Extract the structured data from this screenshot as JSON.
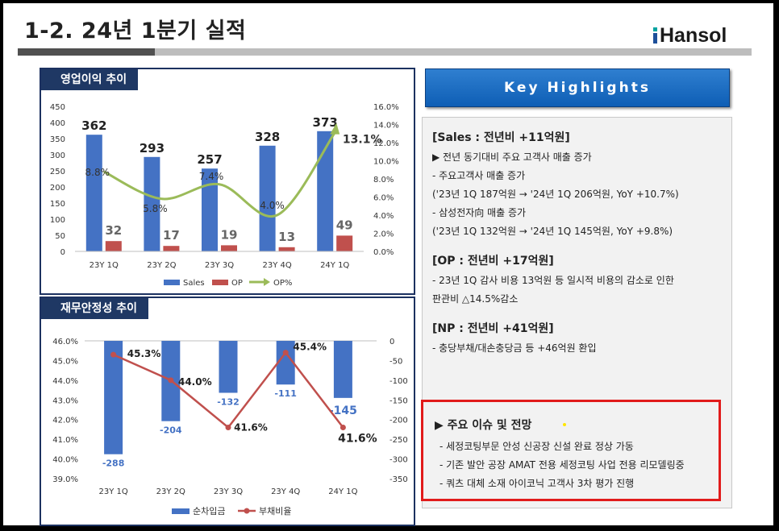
{
  "header": {
    "title": "1-2. 24년 1분기 실적",
    "logo": "Hansol"
  },
  "panel1": {
    "tab": "영업이익 추이"
  },
  "panel2": {
    "tab": "재무안정성 추이"
  },
  "chart_data": [
    {
      "type": "bar",
      "title": "영업이익 추이",
      "categories": [
        "23Y 1Q",
        "23Y 2Q",
        "23Y 3Q",
        "23Y 4Q",
        "24Y 1Q"
      ],
      "series": [
        {
          "name": "Sales",
          "values": [
            362,
            293,
            257,
            328,
            373
          ],
          "labels": [
            "362",
            "293",
            "257",
            "328",
            "373"
          ],
          "color": "#4472c4"
        },
        {
          "name": "OP",
          "values": [
            32,
            17,
            19,
            13,
            49
          ],
          "labels": [
            "32",
            "17",
            "19",
            "13",
            "49"
          ],
          "color": "#c0504d"
        },
        {
          "name": "OP%",
          "type": "line",
          "axis": "right",
          "values": [
            8.8,
            5.8,
            7.4,
            4.0,
            13.1
          ],
          "labels": [
            "8.8%",
            "5.8%",
            "7.4%",
            "4.0%",
            "13.1%"
          ],
          "color": "#9bbb59"
        }
      ],
      "ylim": [
        0,
        450
      ],
      "yticks": [
        "450",
        "400",
        "350",
        "300",
        "250",
        "200",
        "150",
        "100",
        "50",
        "0"
      ],
      "y2lim": [
        0,
        16
      ],
      "y2ticks": [
        "16.0%",
        "14.0%",
        "12.0%",
        "10.0%",
        "8.0%",
        "6.0%",
        "4.0%",
        "2.0%",
        "0.0%"
      ],
      "legend": "bottom"
    },
    {
      "type": "bar",
      "title": "재무안정성 추이",
      "categories": [
        "23Y 1Q",
        "23Y 2Q",
        "23Y 3Q",
        "23Y 4Q",
        "24Y 1Q"
      ],
      "series": [
        {
          "name": "순차입금",
          "axis": "right",
          "values": [
            -288,
            -204,
            -132,
            -111,
            -145
          ],
          "labels": [
            "-288",
            "-204",
            "-132",
            "-111",
            "-145"
          ],
          "color": "#4472c4"
        },
        {
          "name": "부채비율",
          "type": "line",
          "axis": "left",
          "values": [
            45.3,
            44.0,
            41.6,
            45.4,
            41.6
          ],
          "labels": [
            "45.3%",
            "44.0%",
            "41.6%",
            "45.4%",
            "41.6%"
          ],
          "color": "#c0504d"
        }
      ],
      "ylim": [
        39,
        46
      ],
      "yticks": [
        "46.0%",
        "45.0%",
        "44.0%",
        "43.0%",
        "42.0%",
        "41.0%",
        "40.0%",
        "39.0%"
      ],
      "y2lim": [
        -350,
        0
      ],
      "y2ticks": [
        "0",
        "-50",
        "-100",
        "-150",
        "-200",
        "-250",
        "-300",
        "-350"
      ],
      "legend": "bottom"
    }
  ],
  "highlights": {
    "banner": "Key   Highlights",
    "lines": [
      {
        "kind": "hd",
        "text": "[Sales : 전년비 +11억원]"
      },
      {
        "kind": "ln",
        "text": "▶ 전년 동기대비 주요 고객사 매출 증가"
      },
      {
        "kind": "ln",
        "text": " - 주요고객사 매출 증가"
      },
      {
        "kind": "ln",
        "text": "   ('23년 1Q 187억원 → '24년 1Q 206억원, YoY +10.7%)"
      },
      {
        "kind": "ln",
        "text": " - 삼성전자向 매출 증가"
      },
      {
        "kind": "ln",
        "text": "   ('23년 1Q 132억원 → '24년 1Q 145억원, YoY +9.8%)"
      },
      {
        "kind": "sp",
        "text": ""
      },
      {
        "kind": "hd",
        "text": "[OP : 전년비 +17억원]"
      },
      {
        "kind": "ln",
        "text": "  - 23년 1Q 감사 비용 13억원 등 일시적 비용의 감소로 인한"
      },
      {
        "kind": "ln",
        "text": "    판관비 △14.5%감소"
      },
      {
        "kind": "sp",
        "text": ""
      },
      {
        "kind": "hd",
        "text": "[NP : 전년비 +41억원]"
      },
      {
        "kind": "ln",
        "text": "  - 충당부채/대손충당금 등 +46억원 환입"
      }
    ]
  },
  "issues": {
    "title": "▶  주요 이슈 및 전망",
    "items": [
      "- 세정코팅부문 안성 신공장 신설 완료 정상 가동",
      "- 기존 발안 공장 AMAT 전용 세정코팅 사업 전용 리모델링중",
      "- 쿼츠 대체 소재 아이코닉 고객사 3차 평가 진행"
    ]
  }
}
